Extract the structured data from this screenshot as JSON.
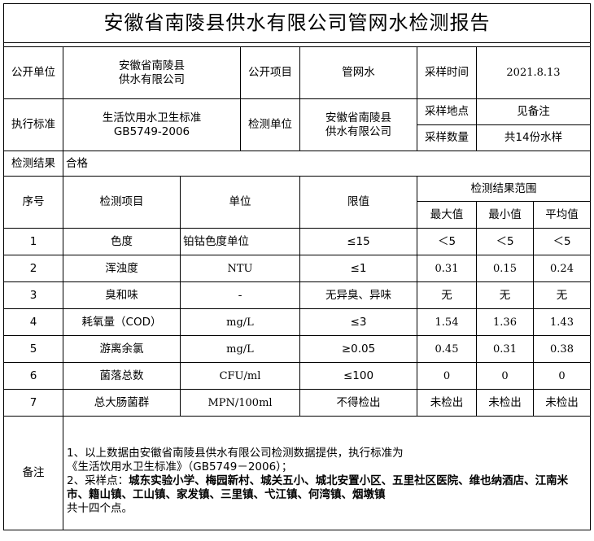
{
  "title": "安徽省南陵县供水有限公司管网水检测报告",
  "info": {
    "pub_unit_label": "公开单位",
    "pub_unit_value": "安徽省南陵县\n供水有限公司",
    "pub_item_label": "公开项目",
    "pub_item_value": "管网水",
    "sample_time_label": "采样时间",
    "sample_time_value": "2021.8.13",
    "standard_label": "执行标准",
    "standard_value": "生活饮用水卫生标准\nGB5749-2006",
    "test_unit_label": "检测单位",
    "test_unit_value": "安徽省南陵县\n供水有限公司",
    "sample_place_label": "采样地点",
    "sample_place_value": "见备注",
    "sample_count_label": "采样数量",
    "sample_count_value": "共14份水样",
    "result_label": "检测结果",
    "result_value": "合格"
  },
  "table": {
    "headers": {
      "index": "序号",
      "item": "检测项目",
      "unit": "单位",
      "limit": "限值",
      "range": "检测结果范围",
      "max": "最大值",
      "min": "最小值",
      "avg": "平均值"
    },
    "rows": [
      {
        "index": "1",
        "item": "色度",
        "unit": "铂钴色度单位",
        "limit": "≤15",
        "max": "＜5",
        "min": "＜5",
        "avg": "＜5"
      },
      {
        "index": "2",
        "item": "浑浊度",
        "unit": "NTU",
        "limit": "≤1",
        "max": "0.31",
        "min": "0.15",
        "avg": "0.24"
      },
      {
        "index": "3",
        "item": "臭和味",
        "unit": "-",
        "limit": "无异臭、异味",
        "max": "无",
        "min": "无",
        "avg": "无"
      },
      {
        "index": "4",
        "item": "耗氧量（COD）",
        "unit": "mg/L",
        "limit": "≤3",
        "max": "1.54",
        "min": "1.36",
        "avg": "1.43"
      },
      {
        "index": "5",
        "item": "游离余氯",
        "unit": "mg/L",
        "limit": "≥0.05",
        "max": "0.45",
        "min": "0.31",
        "avg": "0.38"
      },
      {
        "index": "6",
        "item": "菌落总数",
        "unit": "CFU/ml",
        "limit": "≤100",
        "max": "0",
        "min": "0",
        "avg": "0"
      },
      {
        "index": "7",
        "item": "总大肠菌群",
        "unit": "MPN/100ml",
        "limit": "不得检出",
        "max": "未检出",
        "min": "未检出",
        "avg": "未检出"
      }
    ]
  },
  "remarks": {
    "label": "备注",
    "line1": "1、以上数据由安徽省南陵县供水有限公司检测数据提供，执行标准为",
    "line2": "《生活饮用水卫生标准》（GB5749－2006）；",
    "line3_prefix": "2、采样点：",
    "line3_bold": "城东实验小学、梅园新村、城关五小、城北安置小区、五里社区医院、维也纳酒店、江南米市、籍山镇、工山镇、家发镇、三里镇、弋江镇、何湾镇、烟墩镇",
    "line4": "共十四个点。"
  }
}
